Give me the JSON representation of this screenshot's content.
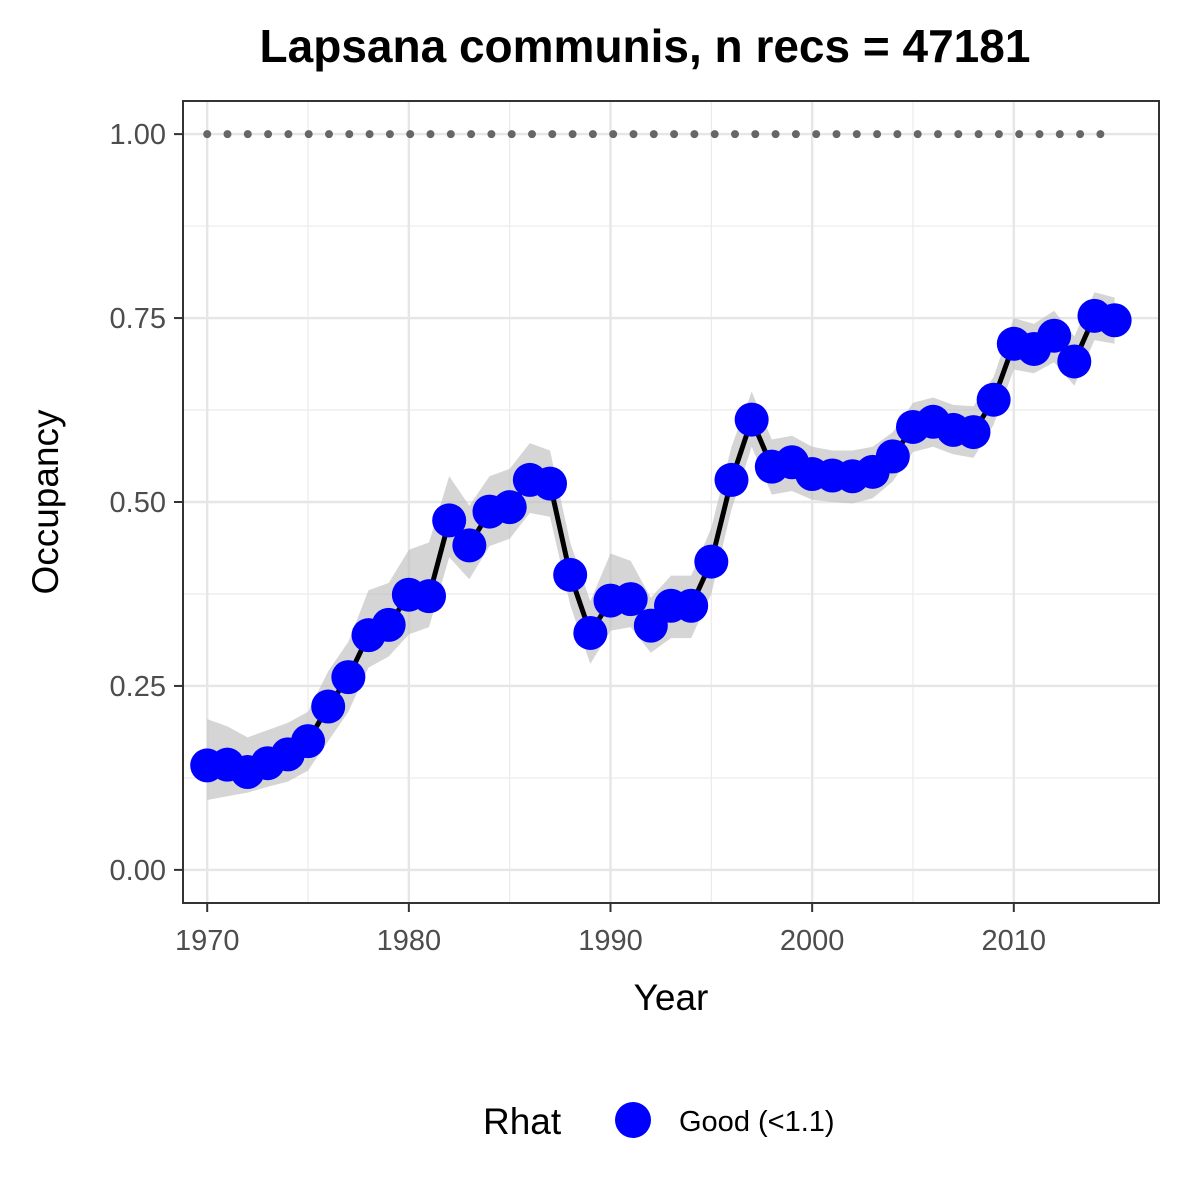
{
  "chart_data": {
    "type": "line",
    "title": "Lapsana communis, n recs = 47181",
    "xlabel": "Year",
    "ylabel": "Occupancy",
    "xlim": [
      1968.8,
      2017.2
    ],
    "ylim": [
      -0.045,
      1.045
    ],
    "x_ticks": [
      1970,
      1980,
      1990,
      2000,
      2010
    ],
    "x_tick_labels": [
      "1970",
      "1980",
      "1990",
      "2000",
      "2010"
    ],
    "y_ticks": [
      0,
      0.25,
      0.5,
      0.75,
      1
    ],
    "y_tick_labels": [
      "0.00",
      "0.25",
      "0.50",
      "0.75",
      "1.00"
    ],
    "grid": true,
    "legend": {
      "title": "Rhat",
      "position": "bottom",
      "entries": [
        {
          "label": "Good (<1.1)",
          "color": "#0000ff"
        }
      ]
    },
    "colors": {
      "points": "#0000ff",
      "line": "#000000",
      "ribbon": "#bfbfbf",
      "reference_line": "#666666"
    },
    "reference_line": {
      "y": 1.0,
      "style": "dotted",
      "x_from": 1970,
      "x_to": 2015
    },
    "series": [
      {
        "x": [
          1970,
          1971,
          1972,
          1973,
          1974,
          1975,
          1976,
          1977,
          1978,
          1979,
          1980,
          1981,
          1982,
          1983,
          1984,
          1985,
          1986,
          1987,
          1988,
          1989,
          1990,
          1991,
          1992,
          1993,
          1994,
          1995,
          1996,
          1997,
          1998,
          1999,
          2000,
          2001,
          2002,
          2003,
          2004,
          2005,
          2006,
          2007,
          2008,
          2009,
          2010,
          2011,
          2012,
          2013,
          2014,
          2015
        ],
        "y": [
          0.142,
          0.143,
          0.133,
          0.145,
          0.157,
          0.175,
          0.222,
          0.262,
          0.319,
          0.333,
          0.374,
          0.372,
          0.475,
          0.441,
          0.487,
          0.493,
          0.53,
          0.525,
          0.401,
          0.322,
          0.366,
          0.368,
          0.332,
          0.359,
          0.359,
          0.419,
          0.53,
          0.612,
          0.548,
          0.554,
          0.538,
          0.536,
          0.535,
          0.541,
          0.562,
          0.602,
          0.609,
          0.598,
          0.595,
          0.639,
          0.715,
          0.708,
          0.726,
          0.691,
          0.753,
          0.747
        ],
        "lower": [
          0.095,
          0.1,
          0.105,
          0.113,
          0.12,
          0.135,
          0.175,
          0.215,
          0.275,
          0.29,
          0.32,
          0.33,
          0.425,
          0.395,
          0.44,
          0.45,
          0.485,
          0.48,
          0.36,
          0.28,
          0.325,
          0.33,
          0.295,
          0.315,
          0.315,
          0.375,
          0.49,
          0.575,
          0.51,
          0.515,
          0.503,
          0.5,
          0.498,
          0.505,
          0.528,
          0.568,
          0.575,
          0.565,
          0.56,
          0.605,
          0.68,
          0.675,
          0.69,
          0.658,
          0.72,
          0.715
        ],
        "upper": [
          0.205,
          0.195,
          0.18,
          0.19,
          0.2,
          0.215,
          0.27,
          0.31,
          0.38,
          0.39,
          0.435,
          0.445,
          0.535,
          0.495,
          0.535,
          0.545,
          0.58,
          0.57,
          0.445,
          0.365,
          0.43,
          0.42,
          0.37,
          0.4,
          0.4,
          0.465,
          0.575,
          0.65,
          0.585,
          0.59,
          0.575,
          0.57,
          0.57,
          0.575,
          0.595,
          0.635,
          0.642,
          0.632,
          0.63,
          0.67,
          0.75,
          0.742,
          0.76,
          0.725,
          0.785,
          0.778
        ]
      }
    ]
  }
}
